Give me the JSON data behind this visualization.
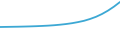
{
  "x": [
    0,
    1,
    2,
    3,
    4,
    5,
    6,
    7,
    8,
    9,
    10,
    11,
    12,
    13,
    14,
    15,
    16,
    17,
    18,
    19,
    20
  ],
  "y": [
    1.0,
    1.05,
    1.1,
    1.15,
    1.22,
    1.3,
    1.4,
    1.53,
    1.68,
    1.88,
    2.15,
    2.48,
    2.9,
    3.45,
    4.1,
    5.0,
    6.1,
    7.5,
    9.2,
    11.2,
    13.5
  ],
  "line_color": "#3ca8d4",
  "line_width": 1.3,
  "background_color": "#ffffff",
  "xlim_min": 0,
  "xlim_max": 20,
  "ylim_min": -8,
  "ylim_max": 14.5
}
